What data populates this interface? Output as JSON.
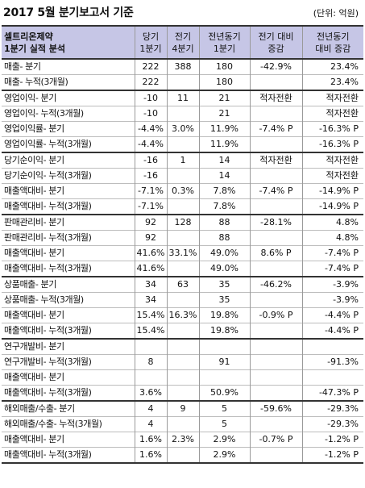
{
  "title": "2017 5월 분기보고서 기준",
  "unit": "(단위: 억원)",
  "header": {
    "company": "셀트리온제약",
    "subtitle": "1분기 실적 분석",
    "cols": [
      {
        "l1": "당기",
        "l2": "1분기"
      },
      {
        "l1": "전기",
        "l2": "4분기"
      },
      {
        "l1": "전년동기",
        "l2": "1분기"
      },
      {
        "l1": "전기 대비",
        "l2": "증감"
      },
      {
        "l1": "전년동기",
        "l2": "대비 증감"
      }
    ]
  },
  "groups": [
    {
      "rows": [
        {
          "label": "매출- 분기",
          "v": [
            "222",
            "388",
            "180",
            "-42.9%",
            "23.4%"
          ]
        },
        {
          "label": "매출- 누적(3개월)",
          "v": [
            "222",
            "",
            "180",
            "",
            "23.4%"
          ]
        }
      ]
    },
    {
      "rows": [
        {
          "label": "영업이익- 분기",
          "v": [
            "-10",
            "11",
            "21",
            "적자전환",
            "적자전환"
          ]
        },
        {
          "label": "영업이익- 누적(3개월)",
          "v": [
            "-10",
            "",
            "21",
            "",
            "적자전환"
          ]
        },
        {
          "label": "영업이익률- 분기",
          "v": [
            "-4.4%",
            "3.0%",
            "11.9%",
            "-7.4% P",
            "-16.3% P"
          ]
        },
        {
          "label": "영업이익률- 누적(3개월)",
          "v": [
            "-4.4%",
            "",
            "11.9%",
            "",
            "-16.3% P"
          ]
        }
      ]
    },
    {
      "rows": [
        {
          "label": "당기순이익- 분기",
          "v": [
            "-16",
            "1",
            "14",
            "적자전환",
            "적자전환"
          ]
        },
        {
          "label": "당기순이익- 누적(3개월)",
          "v": [
            "-16",
            "",
            "14",
            "",
            "적자전환"
          ]
        },
        {
          "label": "매출액대비- 분기",
          "v": [
            "-7.1%",
            "0.3%",
            "7.8%",
            "-7.4% P",
            "-14.9% P"
          ]
        },
        {
          "label": "매출액대비- 누적(3개월)",
          "v": [
            "-7.1%",
            "",
            "7.8%",
            "",
            "-14.9% P"
          ]
        }
      ]
    },
    {
      "rows": [
        {
          "label": "판매관리비- 분기",
          "v": [
            "92",
            "128",
            "88",
            "-28.1%",
            "4.8%"
          ]
        },
        {
          "label": "판매관리비- 누적(3개월)",
          "v": [
            "92",
            "",
            "88",
            "",
            "4.8%"
          ]
        },
        {
          "label": "매출액대비- 분기",
          "v": [
            "41.6%",
            "33.1%",
            "49.0%",
            "8.6% P",
            "-7.4% P"
          ]
        },
        {
          "label": "매출액대비- 누적(3개월)",
          "v": [
            "41.6%",
            "",
            "49.0%",
            "",
            "-7.4% P"
          ]
        }
      ]
    },
    {
      "rows": [
        {
          "label": "상품매출- 분기",
          "v": [
            "34",
            "63",
            "35",
            "-46.2%",
            "-3.9%"
          ]
        },
        {
          "label": "상품매출- 누적(3개월)",
          "v": [
            "34",
            "",
            "35",
            "",
            "-3.9%"
          ]
        },
        {
          "label": "매출액대비- 분기",
          "v": [
            "15.4%",
            "16.3%",
            "19.8%",
            "-0.9% P",
            "-4.4% P"
          ]
        },
        {
          "label": "매출액대비- 누적(3개월)",
          "v": [
            "15.4%",
            "",
            "19.8%",
            "",
            "-4.4% P"
          ]
        }
      ]
    },
    {
      "rows": [
        {
          "label": "연구개발비- 분기",
          "v": [
            "",
            "",
            "",
            "",
            ""
          ]
        },
        {
          "label": "연구개발비- 누적(3개월)",
          "v": [
            "8",
            "",
            "91",
            "",
            "-91.3%"
          ]
        },
        {
          "label": "매출액대비- 분기",
          "v": [
            "",
            "",
            "",
            "",
            ""
          ]
        },
        {
          "label": "매출액대비- 누적(3개월)",
          "v": [
            "3.6%",
            "",
            "50.9%",
            "",
            "-47.3% P"
          ]
        }
      ]
    },
    {
      "rows": [
        {
          "label": "해외매출/수출- 분기",
          "v": [
            "4",
            "9",
            "5",
            "-59.6%",
            "-29.3%"
          ]
        },
        {
          "label": "해외매출/수출- 누적(3개월)",
          "v": [
            "4",
            "",
            "5",
            "",
            "-29.3%"
          ]
        },
        {
          "label": "매출액대비- 분기",
          "v": [
            "1.6%",
            "2.3%",
            "2.9%",
            "-0.7% P",
            "-1.2% P"
          ]
        },
        {
          "label": "매출액대비- 누적(3개월)",
          "v": [
            "1.6%",
            "",
            "2.9%",
            "",
            "-1.2% P"
          ]
        }
      ]
    }
  ]
}
